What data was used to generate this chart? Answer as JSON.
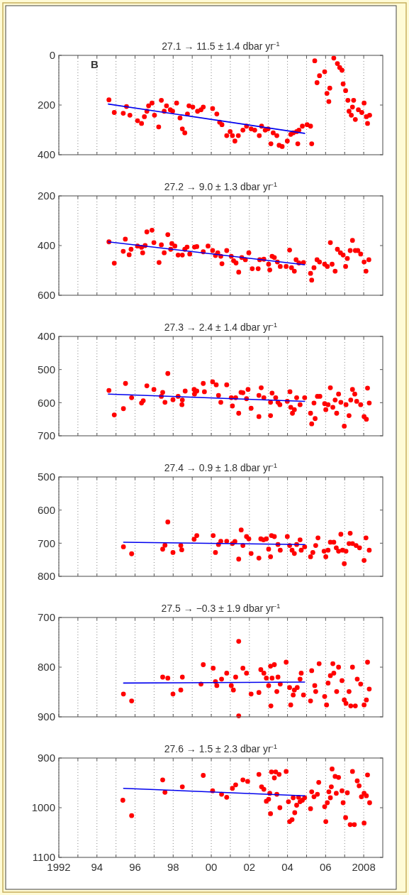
{
  "chart_data": [
    {
      "type": "scatter",
      "title": "27.1 → 11.5 ± 1.4 dbar yr$^{-1}$",
      "annotations": [
        "B"
      ],
      "xlim": [
        1992,
        2009
      ],
      "xticks": [
        {
          "value": 1992,
          "label": null
        },
        {
          "value": 1993,
          "label": null
        },
        {
          "value": 1994,
          "label": null
        },
        {
          "value": 1995,
          "label": null
        },
        {
          "value": 1996,
          "label": null
        },
        {
          "value": 1997,
          "label": null
        },
        {
          "value": 1998,
          "label": null
        },
        {
          "value": 1999,
          "label": null
        },
        {
          "value": 2000,
          "label": null
        },
        {
          "value": 2001,
          "label": null
        },
        {
          "value": 2002,
          "label": null
        },
        {
          "value": 2003,
          "label": null
        },
        {
          "value": 2004,
          "label": null
        },
        {
          "value": 2005,
          "label": null
        },
        {
          "value": 2006,
          "label": null
        },
        {
          "value": 2007,
          "label": null
        },
        {
          "value": 2008,
          "label": null
        }
      ],
      "ylim": [
        400,
        0
      ],
      "yticks": [
        0,
        200,
        400
      ],
      "grid": "x",
      "tick_labels": "y",
      "series": [
        {
          "color": "#ff0000",
          "marker": "circle",
          "x": [
            1994.63,
            1994.91,
            1995.38,
            1995.55,
            1995.73,
            1996.13,
            1996.34,
            1996.49,
            1996.62,
            1996.71,
            1996.89,
            1997.02,
            1997.24,
            1997.38,
            1997.53,
            1997.65,
            1997.85,
            1997.97,
            1998.18,
            1998.36,
            1998.48,
            1998.61,
            1998.75,
            1998.83,
            1999.03,
            1999.28,
            1999.46,
            1999.58,
            2000.07,
            2000.29,
            2000.44,
            2000.56,
            2000.81,
            2000.99,
            2001.11,
            2001.24,
            2001.42,
            2001.66,
            2001.85,
            2002.09,
            2002.28,
            2002.52,
            2002.64,
            2002.83,
            2002.98,
            2003.13,
            2003.25,
            2003.44,
            2003.56,
            2003.72,
            2003.99,
            2004.17,
            2004.3,
            2004.48,
            2004.6,
            2004.54,
            2004.78,
            2005.03,
            2005.21,
            2005.27,
            2005.43,
            2005.55,
            2005.68,
            2005.95,
            2006.07,
            2006.17,
            2006.22,
            2006.43,
            2006.62,
            2006.74,
            2006.86,
            2006.92,
            2007.05,
            2007.17,
            2007.23,
            2007.35,
            2007.41,
            2007.47,
            2007.56,
            2007.72,
            2007.9,
            2008.02,
            2008.14,
            2008.2,
            2008.31
          ],
          "values": [
            179,
            230,
            233,
            206,
            241,
            263,
            274,
            247,
            225,
            203,
            192,
            241,
            288,
            181,
            225,
            203,
            219,
            225,
            192,
            252,
            296,
            312,
            236,
            203,
            208,
            225,
            219,
            208,
            214,
            236,
            269,
            279,
            323,
            307,
            323,
            345,
            323,
            301,
            285,
            296,
            301,
            323,
            285,
            301,
            296,
            356,
            312,
            323,
            362,
            367,
            345,
            318,
            312,
            307,
            301,
            356,
            285,
            279,
            285,
            356,
            22,
            110,
            82,
            66,
            153,
            186,
            132,
            11,
            33,
            49,
            60,
            115,
            142,
            181,
            225,
            241,
            208,
            181,
            258,
            219,
            230,
            192,
            247,
            274,
            241
          ]
        },
        {
          "type": "line",
          "color": "#0000ee",
          "x": [
            1994.6,
            2004.9
          ],
          "values": [
            196,
            314
          ]
        }
      ]
    },
    {
      "type": "scatter",
      "title": "27.2 → 9.0 ± 1.3 dbar yr$^{-1}$",
      "xlim": [
        1992,
        2009
      ],
      "xticks": [
        {
          "value": 1992,
          "label": null
        },
        {
          "value": 1993,
          "label": null
        },
        {
          "value": 1994,
          "label": null
        },
        {
          "value": 1995,
          "label": null
        },
        {
          "value": 1996,
          "label": null
        },
        {
          "value": 1997,
          "label": null
        },
        {
          "value": 1998,
          "label": null
        },
        {
          "value": 1999,
          "label": null
        },
        {
          "value": 2000,
          "label": null
        },
        {
          "value": 2001,
          "label": null
        },
        {
          "value": 2002,
          "label": null
        },
        {
          "value": 2003,
          "label": null
        },
        {
          "value": 2004,
          "label": null
        },
        {
          "value": 2005,
          "label": null
        },
        {
          "value": 2006,
          "label": null
        },
        {
          "value": 2007,
          "label": null
        },
        {
          "value": 2008,
          "label": null
        }
      ],
      "ylim": [
        600,
        200
      ],
      "yticks": [
        200,
        400,
        600
      ],
      "grid": "x",
      "tick_labels": "y",
      "series": [
        {
          "color": "#ff0000",
          "marker": "circle",
          "x": [
            1994.63,
            1994.91,
            1995.38,
            1995.49,
            1995.69,
            1995.79,
            1996.13,
            1996.34,
            1996.4,
            1996.53,
            1996.62,
            1996.89,
            1996.99,
            1997.26,
            1997.38,
            1997.53,
            1997.72,
            1997.87,
            1997.93,
            1998.09,
            1998.26,
            1998.48,
            1998.61,
            1998.73,
            1998.87,
            1999.12,
            1999.24,
            1999.58,
            1999.83,
            2000.07,
            2000.22,
            2000.34,
            2000.5,
            2000.56,
            2000.81,
            2001.05,
            2001.17,
            2001.3,
            2001.44,
            2001.6,
            2001.79,
            2001.97,
            2002.15,
            2002.46,
            2002.54,
            2002.76,
            2003.01,
            2003.07,
            2003.19,
            2003.31,
            2003.47,
            2003.62,
            2003.93,
            2004.11,
            2004.21,
            2004.36,
            2004.45,
            2004.6,
            2004.84,
            2005.21,
            2005.27,
            2005.39,
            2005.55,
            2005.68,
            2005.95,
            2006.09,
            2006.25,
            2006.34,
            2006.5,
            2006.62,
            2006.78,
            2006.92,
            2007.05,
            2007.14,
            2007.29,
            2007.41,
            2007.56,
            2007.69,
            2007.84,
            2008.02,
            2008.12,
            2008.27
          ],
          "values": [
            385,
            471,
            423,
            374,
            437,
            415,
            402,
            407,
            429,
            400,
            345,
            338,
            388,
            468,
            397,
            429,
            356,
            415,
            392,
            402,
            438,
            438,
            415,
            406,
            434,
            406,
            404,
            425,
            402,
            420,
            440,
            429,
            443,
            473,
            420,
            443,
            461,
            470,
            507,
            448,
            457,
            429,
            493,
            493,
            457,
            455,
            475,
            498,
            443,
            448,
            466,
            484,
            484,
            418,
            489,
            503,
            457,
            470,
            468,
            512,
            539,
            489,
            457,
            466,
            475,
            484,
            388,
            475,
            503,
            415,
            429,
            438,
            484,
            452,
            420,
            379,
            420,
            420,
            434,
            466,
            503,
            457
          ]
        },
        {
          "type": "line",
          "color": "#0000ee",
          "x": [
            1994.6,
            2004.9
          ],
          "values": [
            385,
            477
          ]
        }
      ]
    },
    {
      "type": "scatter",
      "title": "27.3 → 2.4 ± 1.4 dbar yr$^{-1}$",
      "xlim": [
        1992,
        2009
      ],
      "xticks": [
        {
          "value": 1992,
          "label": null
        },
        {
          "value": 1993,
          "label": null
        },
        {
          "value": 1994,
          "label": null
        },
        {
          "value": 1995,
          "label": null
        },
        {
          "value": 1996,
          "label": null
        },
        {
          "value": 1997,
          "label": null
        },
        {
          "value": 1998,
          "label": null
        },
        {
          "value": 1999,
          "label": null
        },
        {
          "value": 2000,
          "label": null
        },
        {
          "value": 2001,
          "label": null
        },
        {
          "value": 2002,
          "label": null
        },
        {
          "value": 2003,
          "label": null
        },
        {
          "value": 2004,
          "label": null
        },
        {
          "value": 2005,
          "label": null
        },
        {
          "value": 2006,
          "label": null
        },
        {
          "value": 2007,
          "label": null
        },
        {
          "value": 2008,
          "label": null
        }
      ],
      "ylim": [
        700,
        400
      ],
      "yticks": [
        400,
        500,
        600,
        700
      ],
      "grid": "x",
      "tick_labels": "y",
      "series": [
        {
          "color": "#ff0000",
          "marker": "circle",
          "x": [
            1994.63,
            1994.91,
            1995.39,
            1995.5,
            1995.82,
            1996.34,
            1996.43,
            1996.62,
            1996.99,
            1997.38,
            1997.45,
            1997.57,
            1997.72,
            1997.99,
            1998.26,
            1998.48,
            1998.46,
            1998.63,
            1999.12,
            1999.1,
            1999.24,
            1999.58,
            1999.64,
            2000.07,
            2000.26,
            2000.38,
            2000.5,
            2000.81,
            2001.05,
            2001.11,
            2001.28,
            2001.44,
            2001.56,
            2001.66,
            2001.85,
            2001.93,
            2002.09,
            2002.5,
            2002.5,
            2002.62,
            2002.76,
            2003.11,
            2003.11,
            2003.19,
            2003.38,
            2003.5,
            2003.6,
            2003.99,
            2004.13,
            2004.17,
            2004.26,
            2004.36,
            2004.48,
            2004.66,
            2004.9,
            2005.21,
            2005.27,
            2005.39,
            2005.45,
            2005.57,
            2005.7,
            2005.95,
            2006.01,
            2006.13,
            2006.25,
            2006.38,
            2006.5,
            2006.58,
            2006.68,
            2006.8,
            2006.98,
            2007.07,
            2007.23,
            2007.32,
            2007.41,
            2007.53,
            2007.63,
            2007.84,
            2008.02,
            2008.14,
            2008.2,
            2008.29
          ],
          "values": [
            563,
            637,
            618,
            542,
            585,
            601,
            594,
            549,
            560,
            581,
            569,
            599,
            512,
            591,
            581,
            592,
            606,
            565,
            574,
            560,
            565,
            542,
            567,
            537,
            546,
            578,
            599,
            546,
            585,
            610,
            585,
            632,
            569,
            570,
            588,
            560,
            617,
            578,
            642,
            555,
            585,
            639,
            599,
            571,
            585,
            599,
            606,
            596,
            567,
            614,
            632,
            621,
            585,
            606,
            585,
            632,
            664,
            601,
            648,
            581,
            581,
            603,
            621,
            606,
            555,
            614,
            592,
            632,
            574,
            599,
            671,
            606,
            639,
            592,
            560,
            574,
            596,
            606,
            642,
            650,
            556,
            601
          ]
        },
        {
          "type": "line",
          "color": "#0000ee",
          "x": [
            1994.6,
            2004.9
          ],
          "values": [
            574,
            596
          ]
        }
      ]
    },
    {
      "type": "scatter",
      "title": "27.4 → 0.9 ± 1.8 dbar yr$^{-1}$",
      "xlim": [
        1992,
        2009
      ],
      "xticks": [
        {
          "value": 1992,
          "label": null
        },
        {
          "value": 1993,
          "label": null
        },
        {
          "value": 1994,
          "label": null
        },
        {
          "value": 1995,
          "label": null
        },
        {
          "value": 1996,
          "label": null
        },
        {
          "value": 1997,
          "label": null
        },
        {
          "value": 1998,
          "label": null
        },
        {
          "value": 1999,
          "label": null
        },
        {
          "value": 2000,
          "label": null
        },
        {
          "value": 2001,
          "label": null
        },
        {
          "value": 2002,
          "label": null
        },
        {
          "value": 2003,
          "label": null
        },
        {
          "value": 2004,
          "label": null
        },
        {
          "value": 2005,
          "label": null
        },
        {
          "value": 2006,
          "label": null
        },
        {
          "value": 2007,
          "label": null
        },
        {
          "value": 2008,
          "label": null
        }
      ],
      "ylim": [
        800,
        500
      ],
      "yticks": [
        500,
        600,
        700,
        800
      ],
      "grid": "x",
      "tick_labels": "y",
      "series": [
        {
          "color": "#ff0000",
          "marker": "circle",
          "x": [
            1995.39,
            1995.82,
            1997.45,
            1997.57,
            1997.72,
            1997.99,
            1998.4,
            1998.45,
            1999.1,
            1999.24,
            2000.1,
            2000.22,
            2000.38,
            2000.5,
            2000.81,
            2001.11,
            2001.24,
            2001.44,
            2001.57,
            2001.66,
            2001.85,
            2001.97,
            2002.09,
            2002.5,
            2002.6,
            2002.74,
            2002.89,
            2003.01,
            2003.11,
            2003.16,
            2003.31,
            2003.5,
            2003.62,
            2003.99,
            2004.11,
            2004.24,
            2004.36,
            2004.48,
            2004.66,
            2004.72,
            2004.9,
            2005.21,
            2005.33,
            2005.48,
            2005.6,
            2005.92,
            2006.01,
            2006.13,
            2006.25,
            2006.43,
            2006.56,
            2006.68,
            2006.8,
            2006.89,
            2006.98,
            2007.07,
            2007.23,
            2007.29,
            2007.41,
            2007.6,
            2007.78,
            2008.02,
            2008.12,
            2008.29
          ],
          "values": [
            711,
            732,
            718,
            706,
            636,
            728,
            707,
            720,
            688,
            677,
            677,
            728,
            704,
            694,
            694,
            701,
            695,
            748,
            660,
            707,
            680,
            687,
            731,
            745,
            687,
            690,
            687,
            718,
            741,
            677,
            680,
            704,
            721,
            680,
            707,
            721,
            731,
            704,
            690,
            721,
            711,
            741,
            728,
            707,
            684,
            724,
            741,
            721,
            697,
            697,
            714,
            724,
            673,
            721,
            762,
            724,
            701,
            670,
            701,
            707,
            714,
            752,
            684,
            721
          ]
        },
        {
          "type": "line",
          "color": "#0000ee",
          "x": [
            1995.4,
            2004.9
          ],
          "values": [
            697,
            704
          ]
        }
      ]
    },
    {
      "type": "scatter",
      "title": "27.5 → −0.3 ± 1.9 dbar yr$^{-1}$",
      "xlim": [
        1992,
        2009
      ],
      "xticks": [
        {
          "value": 1992,
          "label": null
        },
        {
          "value": 1993,
          "label": null
        },
        {
          "value": 1994,
          "label": null
        },
        {
          "value": 1995,
          "label": null
        },
        {
          "value": 1996,
          "label": null
        },
        {
          "value": 1997,
          "label": null
        },
        {
          "value": 1998,
          "label": null
        },
        {
          "value": 1999,
          "label": null
        },
        {
          "value": 2000,
          "label": null
        },
        {
          "value": 2001,
          "label": null
        },
        {
          "value": 2002,
          "label": null
        },
        {
          "value": 2003,
          "label": null
        },
        {
          "value": 2004,
          "label": null
        },
        {
          "value": 2005,
          "label": null
        },
        {
          "value": 2006,
          "label": null
        },
        {
          "value": 2007,
          "label": null
        },
        {
          "value": 2008,
          "label": null
        }
      ],
      "ylim": [
        900,
        700
      ],
      "yticks": [
        700,
        800,
        900
      ],
      "grid": "x",
      "tick_labels": "y",
      "series": [
        {
          "color": "#ff0000",
          "marker": "circle",
          "x": [
            1995.39,
            1995.82,
            1997.45,
            1997.72,
            1997.99,
            1998.4,
            1998.48,
            1999.46,
            1999.58,
            2000.1,
            2000.22,
            2000.29,
            2000.54,
            2000.81,
            2001.05,
            2001.16,
            2001.28,
            2001.44,
            2001.44,
            2001.66,
            2001.85,
            2002.09,
            2002.5,
            2002.6,
            2002.76,
            2002.89,
            2003.01,
            2003.11,
            2003.13,
            2003.19,
            2003.31,
            2003.44,
            2003.5,
            2003.62,
            2003.93,
            2004.11,
            2004.17,
            2004.3,
            2004.36,
            2004.51,
            2004.66,
            2004.72,
            2004.84,
            2005.21,
            2005.27,
            2005.43,
            2005.48,
            2005.66,
            2005.95,
            2006.05,
            2006.13,
            2006.25,
            2006.38,
            2006.43,
            2006.58,
            2006.68,
            2006.86,
            2006.98,
            2007.07,
            2007.23,
            2007.32,
            2007.41,
            2007.56,
            2007.66,
            2007.84,
            2008.02,
            2008.14,
            2008.2,
            2008.29
          ],
          "values": [
            854,
            868,
            820,
            822,
            854,
            846,
            820,
            834,
            795,
            802,
            829,
            837,
            824,
            812,
            837,
            846,
            820,
            748,
            898,
            802,
            812,
            854,
            851,
            805,
            812,
            822,
            837,
            798,
            878,
            822,
            795,
            849,
            820,
            834,
            790,
            841,
            876,
            856,
            846,
            841,
            824,
            812,
            856,
            868,
            807,
            837,
            849,
            793,
            859,
            876,
            832,
            817,
            793,
            812,
            849,
            800,
            827,
            866,
            873,
            849,
            878,
            800,
            878,
            824,
            834,
            876,
            866,
            790,
            844
          ]
        },
        {
          "type": "line",
          "color": "#0000ee",
          "x": [
            1995.4,
            2004.9
          ],
          "values": [
            832,
            830
          ]
        }
      ]
    },
    {
      "type": "scatter",
      "title": "27.6 → 1.5 ± 2.3 dbar yr$^{-1}$",
      "xlim": [
        1992,
        2009
      ],
      "xticks": [
        1992,
        {
          "value": 1993,
          "label": null
        },
        {
          "value": 1994,
          "label": "94"
        },
        {
          "value": 1995,
          "label": null
        },
        {
          "value": 1996,
          "label": "96"
        },
        {
          "value": 1997,
          "label": null
        },
        {
          "value": 1998,
          "label": "98"
        },
        {
          "value": 1999,
          "label": null
        },
        {
          "value": 2000,
          "label": "00"
        },
        {
          "value": 2001,
          "label": null
        },
        {
          "value": 2002,
          "label": "02"
        },
        {
          "value": 2003,
          "label": null
        },
        {
          "value": 2004,
          "label": "04"
        },
        {
          "value": 2005,
          "label": null
        },
        {
          "value": 2006,
          "label": "06"
        },
        {
          "value": 2007,
          "label": null
        },
        2008
      ],
      "ylim": [
        1100,
        900
      ],
      "yticks": [
        900,
        1000,
        1100
      ],
      "grid": "x",
      "series": [
        {
          "color": "#ff0000",
          "marker": "circle",
          "x": [
            1995.36,
            1995.82,
            1997.45,
            1997.57,
            1998.48,
            1999.58,
            2000.07,
            2000.54,
            2000.81,
            2001.11,
            2001.28,
            2001.66,
            2001.91,
            2002.5,
            2002.64,
            2002.76,
            2002.89,
            2003.01,
            2003.07,
            2003.11,
            2003.16,
            2003.31,
            2003.38,
            2003.44,
            2003.56,
            2003.6,
            2003.93,
            2004.05,
            2004.11,
            2004.24,
            2004.3,
            2004.38,
            2004.48,
            2004.58,
            2004.66,
            2004.78,
            2004.9,
            2005.21,
            2005.27,
            2005.39,
            2005.57,
            2005.64,
            2005.95,
            2006.01,
            2006.09,
            2006.17,
            2006.25,
            2006.3,
            2006.34,
            2006.5,
            2006.56,
            2006.68,
            2006.86,
            2006.92,
            2007.05,
            2007.14,
            2007.29,
            2007.41,
            2007.51,
            2007.66,
            2007.76,
            2007.88,
            2008.02,
            2008.02,
            2008.14,
            2008.2,
            2008.31
          ],
          "values": [
            985,
            1016,
            944,
            969,
            958,
            935,
            966,
            973,
            979,
            961,
            954,
            944,
            947,
            933,
            958,
            963,
            987,
            983,
            971,
            1012,
            928,
            940,
            928,
            973,
            933,
            1000,
            927,
            988,
            1028,
            1024,
            980,
            1010,
            995,
            979,
            988,
            985,
            980,
            1002,
            968,
            978,
            973,
            949,
            998,
            1028,
            990,
            968,
            980,
            958,
            922,
            937,
            971,
            939,
            966,
            990,
            1020,
            970,
            1034,
            927,
            1034,
            946,
            956,
            978,
            1031,
            971,
            976,
            934,
            990
          ]
        },
        {
          "type": "line",
          "color": "#0000ee",
          "x": [
            1995.4,
            2004.9
          ],
          "values": [
            961,
            976
          ]
        }
      ]
    }
  ]
}
